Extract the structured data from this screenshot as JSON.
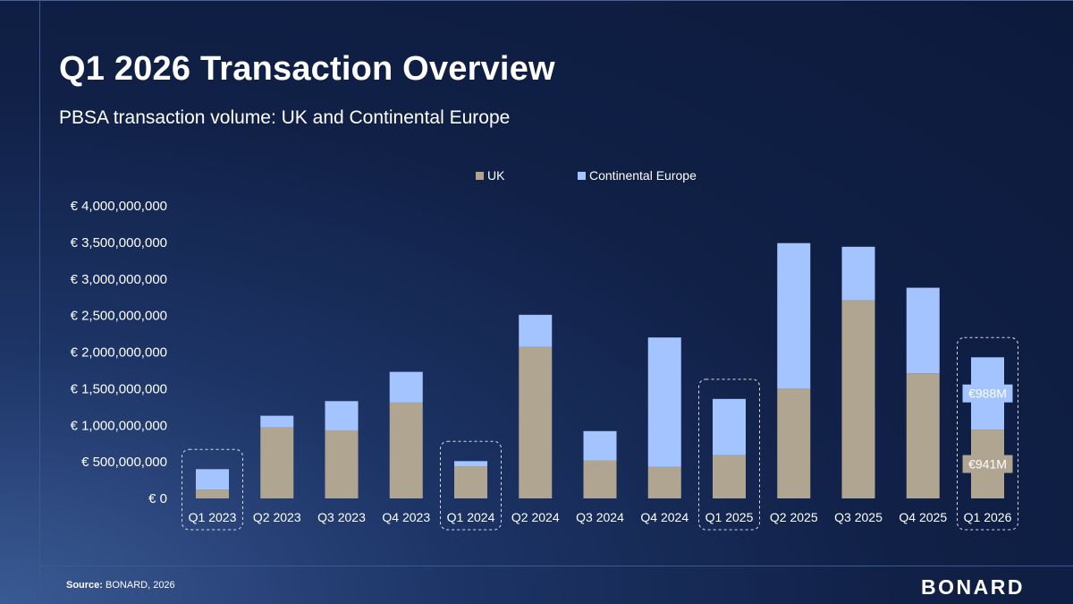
{
  "header": {
    "title": "Q1 2026 Transaction Overview",
    "subtitle": "PBSA transaction volume: UK and Continental Europe"
  },
  "footer": {
    "source_label": "Source:",
    "source_text": " BONARD, 2026",
    "logo_text": "BONARD"
  },
  "colors": {
    "uk": "#b0a590",
    "europe": "#a3c4ff",
    "highlight_border": "#d8deea"
  },
  "chart_data": {
    "type": "bar",
    "stacked": true,
    "categories": [
      "Q1 2023",
      "Q2 2023",
      "Q3 2023",
      "Q4 2023",
      "Q1 2024",
      "Q2 2024",
      "Q3 2024",
      "Q4 2024",
      "Q1 2025",
      "Q2 2025",
      "Q3 2025",
      "Q4 2025",
      "Q1 2026"
    ],
    "series": [
      {
        "name": "UK",
        "values": [
          120000000,
          970000000,
          930000000,
          1310000000,
          440000000,
          2070000000,
          520000000,
          430000000,
          590000000,
          1500000000,
          2710000000,
          1710000000,
          941000000
        ]
      },
      {
        "name": "Continental Europe",
        "values": [
          280000000,
          160000000,
          400000000,
          420000000,
          70000000,
          440000000,
          400000000,
          1770000000,
          770000000,
          1990000000,
          730000000,
          1170000000,
          988000000
        ]
      }
    ],
    "ylim": [
      0,
      4000000000
    ],
    "yticks": [
      0,
      500000000,
      1000000000,
      1500000000,
      2000000000,
      2500000000,
      3000000000,
      3500000000,
      4000000000
    ],
    "ytick_labels": [
      "€ 0",
      "€ 500,000,000",
      "€ 1,000,000,000",
      "€ 1,500,000,000",
      "€ 2,000,000,000",
      "€ 2,500,000,000",
      "€ 3,000,000,000",
      "€ 3,500,000,000",
      "€ 4,000,000,000"
    ],
    "legend": {
      "position": "top-center",
      "entries": [
        "UK",
        "Continental Europe"
      ]
    },
    "highlighted_categories": [
      "Q1 2023",
      "Q1 2024",
      "Q1 2025",
      "Q1 2026"
    ],
    "annotations": [
      {
        "category": "Q1 2026",
        "series": "UK",
        "text": "€941M"
      },
      {
        "category": "Q1 2026",
        "series": "Continental Europe",
        "text": "€988M"
      }
    ],
    "grid": false
  }
}
